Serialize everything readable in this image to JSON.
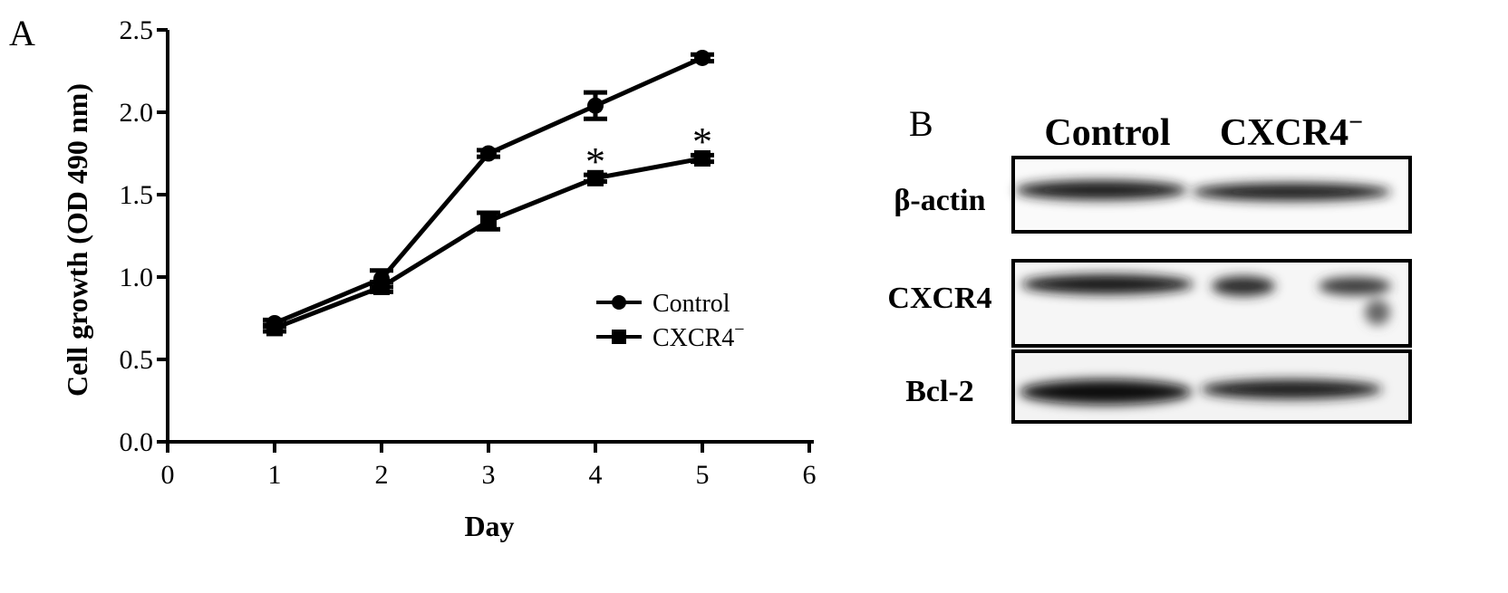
{
  "panel_a": {
    "letter": "A"
  },
  "panel_b": {
    "letter": "B"
  },
  "chart_data": {
    "type": "line",
    "title": "",
    "xlabel": "Day",
    "ylabel": "Cell growth (OD 490 nm)",
    "xlim": [
      0,
      6
    ],
    "ylim": [
      0,
      2.5
    ],
    "x_ticks": [
      "0",
      "1",
      "2",
      "3",
      "4",
      "5",
      "6"
    ],
    "y_ticks": [
      "0.0",
      "0.5",
      "1.0",
      "1.5",
      "2.0",
      "2.5"
    ],
    "x": [
      1,
      2,
      3,
      4,
      5
    ],
    "series": [
      {
        "name": "Control",
        "marker": "circle",
        "values": [
          0.72,
          0.99,
          1.75,
          2.04,
          2.33
        ],
        "errors": [
          0.02,
          0.05,
          0.02,
          0.08,
          0.02
        ]
      },
      {
        "name": "CXCR4",
        "name_superscript": "−",
        "marker": "square",
        "values": [
          0.69,
          0.94,
          1.34,
          1.6,
          1.72
        ],
        "errors": [
          0.02,
          0.03,
          0.05,
          0.02,
          0.02
        ]
      }
    ],
    "annotations": [
      {
        "text": "*",
        "x": 4,
        "y": 1.6
      },
      {
        "text": "*",
        "x": 5,
        "y": 1.72
      }
    ],
    "grid": false,
    "legend_position": "middle-right"
  },
  "western_blot": {
    "columns": [
      "Control",
      "CXCR4"
    ],
    "column_superscript": "−",
    "rows": [
      "β-actin",
      "CXCR4",
      "Bcl-2"
    ]
  }
}
